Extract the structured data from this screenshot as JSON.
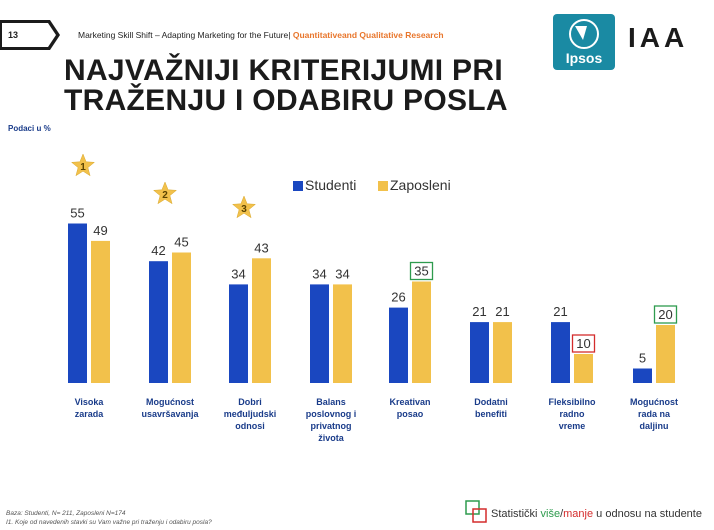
{
  "header": {
    "slide_number": "13",
    "title_text": "Marketing Skill Shift – Adapting Marketing for the Future",
    "subtitle_text": "Quantitativeand Qualitative  Research"
  },
  "slide": {
    "title_line1": "NAJVAŽNIJI KRITERIJUMI PRI",
    "title_line2": "TRAŽENJU I ODABIRU POSLA",
    "units_label": "Podaci u %"
  },
  "logos": {
    "ipsos": "Ipsos",
    "iaa": "IAA"
  },
  "footer": {
    "base_note": "Baza: Studenti, N= 211, Zaposleni N=174",
    "question_note": "I1. Koje od navedenih stavki su Vam važne pri traženju i odabiru posla?",
    "significance_prefix": "Statistički ",
    "significance_more": "više",
    "significance_slash": "/",
    "significance_less": "manje",
    "significance_suffix": " u odnosu na studente"
  },
  "colors": {
    "students": "#1a47c0",
    "employees": "#f2c14b",
    "more": "#2e9b4e",
    "less": "#d42c2c",
    "star": "#f2c14b"
  },
  "chart_data": {
    "type": "bar",
    "categories": [
      [
        "Visoka",
        "zarada"
      ],
      [
        "Mogućnost",
        "usavršavanja"
      ],
      [
        "Dobri",
        "međuljudski",
        "odnosi"
      ],
      [
        "Balans",
        "poslovnog i",
        "privatnog",
        "života"
      ],
      [
        "Kreativan",
        "posao"
      ],
      [
        "Dodatni",
        "benefiti"
      ],
      [
        "Fleksibilno",
        "radno",
        "vreme"
      ],
      [
        "Mogućnost",
        "rada na",
        "daljinu"
      ]
    ],
    "series": [
      {
        "name": "Studenti",
        "values": [
          55,
          42,
          34,
          34,
          26,
          21,
          21,
          5
        ]
      },
      {
        "name": "Zaposleni",
        "values": [
          49,
          45,
          43,
          34,
          35,
          21,
          10,
          20
        ]
      }
    ],
    "highlights": [
      {
        "category_index": 4,
        "series": "Zaposleni",
        "type": "more"
      },
      {
        "category_index": 6,
        "series": "Zaposleni",
        "type": "less"
      },
      {
        "category_index": 7,
        "series": "Zaposleni",
        "type": "more"
      }
    ],
    "stars": [
      {
        "category_index": 0,
        "rank": "1"
      },
      {
        "category_index": 1,
        "rank": "2"
      },
      {
        "category_index": 2,
        "rank": "3"
      }
    ],
    "ylim": [
      0,
      60
    ]
  }
}
